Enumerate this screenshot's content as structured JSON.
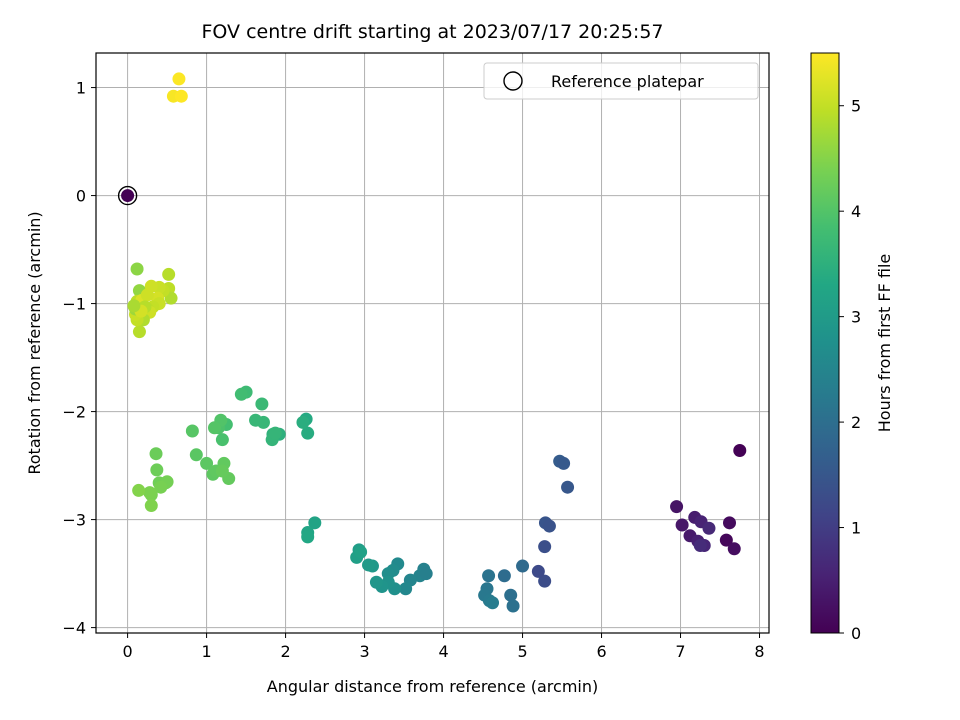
{
  "chart_data": {
    "type": "scatter",
    "title": "FOV centre drift starting at 2023/07/17 20:25:57",
    "xlabel": "Angular distance from reference (arcmin)",
    "ylabel": "Rotation from reference (arcmin)",
    "colorbar_label": "Hours from first FF file",
    "xlim": [
      -0.4,
      8.12
    ],
    "ylim": [
      -4.05,
      1.32
    ],
    "clim": [
      0,
      5.5
    ],
    "x_ticks": [
      0,
      1,
      2,
      3,
      4,
      5,
      6,
      7,
      8
    ],
    "y_ticks": [
      -4,
      -3,
      -2,
      -1,
      0,
      1
    ],
    "colorbar_ticks": [
      0,
      1,
      2,
      3,
      4,
      5
    ],
    "grid": true,
    "colormap": "viridis",
    "legend": {
      "position": "top-right",
      "entries": [
        "Reference platepar"
      ]
    },
    "reference_point": {
      "x": 0,
      "y": 0,
      "c": 0
    },
    "points": [
      [
        7.75,
        -2.36,
        0.02
      ],
      [
        6.95,
        -2.88,
        0.3
      ],
      [
        7.02,
        -3.05,
        0.35
      ],
      [
        7.12,
        -3.15,
        0.4
      ],
      [
        7.18,
        -2.98,
        0.45
      ],
      [
        7.22,
        -3.2,
        0.5
      ],
      [
        7.26,
        -3.02,
        0.55
      ],
      [
        7.3,
        -3.24,
        0.6
      ],
      [
        7.36,
        -3.08,
        0.65
      ],
      [
        7.25,
        -3.24,
        0.7
      ],
      [
        7.58,
        -3.19,
        0.1
      ],
      [
        7.62,
        -3.03,
        0.15
      ],
      [
        7.68,
        -3.27,
        0.2
      ],
      [
        5.47,
        -2.46,
        1.6
      ],
      [
        5.52,
        -2.48,
        1.55
      ],
      [
        5.57,
        -2.7,
        1.5
      ],
      [
        5.29,
        -3.03,
        1.45
      ],
      [
        5.34,
        -3.06,
        1.4
      ],
      [
        5.28,
        -3.25,
        1.35
      ],
      [
        5.28,
        -3.57,
        1.3
      ],
      [
        5.2,
        -3.48,
        1.25
      ],
      [
        5.0,
        -3.43,
        1.9
      ],
      [
        4.77,
        -3.52,
        1.95
      ],
      [
        4.85,
        -3.7,
        2.0
      ],
      [
        4.88,
        -3.8,
        2.05
      ],
      [
        4.57,
        -3.52,
        2.1
      ],
      [
        4.55,
        -3.64,
        2.15
      ],
      [
        4.52,
        -3.7,
        2.2
      ],
      [
        4.58,
        -3.75,
        2.25
      ],
      [
        4.62,
        -3.77,
        2.3
      ],
      [
        3.75,
        -3.46,
        2.4
      ],
      [
        3.7,
        -3.52,
        2.45
      ],
      [
        3.78,
        -3.5,
        2.35
      ],
      [
        3.58,
        -3.56,
        2.5
      ],
      [
        3.52,
        -3.64,
        2.55
      ],
      [
        3.42,
        -3.41,
        2.6
      ],
      [
        3.36,
        -3.47,
        2.65
      ],
      [
        3.3,
        -3.5,
        2.7
      ],
      [
        3.38,
        -3.64,
        2.75
      ],
      [
        3.3,
        -3.58,
        2.8
      ],
      [
        3.22,
        -3.62,
        2.85
      ],
      [
        3.15,
        -3.58,
        2.9
      ],
      [
        3.1,
        -3.43,
        2.95
      ],
      [
        3.05,
        -3.42,
        3.0
      ],
      [
        2.93,
        -3.28,
        3.05
      ],
      [
        2.9,
        -3.35,
        3.1
      ],
      [
        2.95,
        -3.3,
        3.15
      ],
      [
        2.37,
        -3.03,
        3.2
      ],
      [
        2.28,
        -3.12,
        3.25
      ],
      [
        2.28,
        -3.16,
        3.3
      ],
      [
        2.26,
        -2.07,
        3.35
      ],
      [
        2.28,
        -2.2,
        3.4
      ],
      [
        2.22,
        -2.1,
        3.45
      ],
      [
        1.92,
        -2.21,
        3.5
      ],
      [
        1.84,
        -2.21,
        3.55
      ],
      [
        1.83,
        -2.26,
        3.6
      ],
      [
        1.87,
        -2.2,
        3.62
      ],
      [
        1.72,
        -2.1,
        3.65
      ],
      [
        1.7,
        -1.93,
        3.7
      ],
      [
        1.62,
        -2.08,
        3.67
      ],
      [
        1.5,
        -1.82,
        3.75
      ],
      [
        1.44,
        -1.84,
        3.8
      ],
      [
        1.25,
        -2.12,
        3.85
      ],
      [
        1.2,
        -2.26,
        3.9
      ],
      [
        1.15,
        -2.15,
        3.95
      ],
      [
        1.18,
        -2.08,
        4.0
      ],
      [
        1.1,
        -2.15,
        4.02
      ],
      [
        0.82,
        -2.18,
        4.05
      ],
      [
        0.87,
        -2.4,
        4.08
      ],
      [
        1.0,
        -2.48,
        4.1
      ],
      [
        1.08,
        -2.58,
        4.12
      ],
      [
        1.12,
        -2.55,
        4.14
      ],
      [
        1.22,
        -2.48,
        4.16
      ],
      [
        1.28,
        -2.62,
        4.18
      ],
      [
        1.2,
        -2.55,
        4.2
      ],
      [
        0.36,
        -2.39,
        4.25
      ],
      [
        0.37,
        -2.54,
        4.28
      ],
      [
        0.4,
        -2.66,
        4.3
      ],
      [
        0.48,
        -2.66,
        4.32
      ],
      [
        0.5,
        -2.65,
        4.35
      ],
      [
        0.42,
        -2.7,
        4.38
      ],
      [
        0.3,
        -2.77,
        4.4
      ],
      [
        0.28,
        -2.75,
        4.42
      ],
      [
        0.3,
        -2.87,
        4.45
      ],
      [
        0.14,
        -2.73,
        4.48
      ],
      [
        0.12,
        -0.68,
        4.55
      ],
      [
        0.15,
        -0.88,
        4.6
      ],
      [
        0.52,
        -0.73,
        4.9
      ],
      [
        0.52,
        -0.86,
        4.95
      ],
      [
        0.55,
        -0.95,
        4.85
      ],
      [
        0.45,
        -0.88,
        5.0
      ],
      [
        0.4,
        -0.85,
        5.05
      ],
      [
        0.3,
        -0.84,
        5.1
      ],
      [
        0.38,
        -0.95,
        5.15
      ],
      [
        0.4,
        -1.0,
        5.05
      ],
      [
        0.32,
        -1.03,
        5.0
      ],
      [
        0.25,
        -1.05,
        4.95
      ],
      [
        0.28,
        -1.08,
        5.1
      ],
      [
        0.2,
        -1.15,
        4.85
      ],
      [
        0.15,
        -1.26,
        4.9
      ],
      [
        0.12,
        -1.15,
        5.0
      ],
      [
        0.1,
        -1.1,
        5.05
      ],
      [
        0.12,
        -0.98,
        4.95
      ],
      [
        0.14,
        -1.02,
        4.75
      ],
      [
        0.18,
        -0.97,
        5.2
      ],
      [
        0.25,
        -0.92,
        5.1
      ],
      [
        0.22,
        -1.03,
        4.9
      ],
      [
        0.1,
        -1.05,
        4.7
      ],
      [
        0.17,
        -1.07,
        5.15
      ],
      [
        0.08,
        -1.02,
        4.8
      ],
      [
        0.58,
        0.92,
        5.45
      ],
      [
        0.68,
        0.92,
        5.5
      ],
      [
        0.65,
        1.08,
        5.48
      ]
    ]
  }
}
